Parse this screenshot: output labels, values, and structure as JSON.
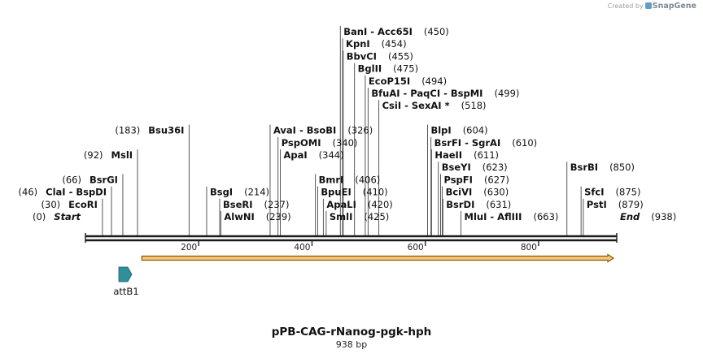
{
  "credit": {
    "prefix": "Created by",
    "brand": "SnapGene"
  },
  "map": {
    "name": "pPB-CAG-rNanog-pgk-hph",
    "length_label": "938 bp",
    "total_bp": 938,
    "colors": {
      "backbone": "#1a1a1a",
      "orf_fill": "#f6c57a",
      "orf_edge": "#8a5a00",
      "feature": "#2f8f9b"
    },
    "ticks": [
      {
        "bp": 200,
        "label": "200"
      },
      {
        "bp": 400,
        "label": "400"
      },
      {
        "bp": 600,
        "label": "600"
      },
      {
        "bp": 800,
        "label": "800"
      }
    ],
    "orf": {
      "start_bp": 91,
      "end_bp": 938
    },
    "feature": {
      "name": "attB1",
      "start_bp": 59,
      "end_bp": 83
    }
  },
  "sites": [
    {
      "id": "start",
      "text": "Start",
      "pos": "(0)",
      "bp": 0,
      "row": 0,
      "side": "right",
      "italic": true
    },
    {
      "id": "ecori",
      "text": "EcoRI",
      "pos": "(30)",
      "bp": 30,
      "row": 1,
      "side": "right"
    },
    {
      "id": "clai",
      "text": "ClaI  - BspDI",
      "pos": "(46)",
      "bp": 46,
      "row": 2,
      "side": "right"
    },
    {
      "id": "bsrgi",
      "text": "BsrGI",
      "pos": "(66)",
      "bp": 66,
      "row": 3,
      "side": "right"
    },
    {
      "id": "msli",
      "text": "MslI",
      "pos": "(92)",
      "bp": 92,
      "row": 5,
      "side": "right"
    },
    {
      "id": "bsu36i",
      "text": "Bsu36I",
      "pos": "(183)",
      "bp": 183,
      "row": 7,
      "side": "right"
    },
    {
      "id": "bsgi",
      "text": "BsgI",
      "pos": "(214)",
      "bp": 214,
      "row": 2,
      "side": "left"
    },
    {
      "id": "bseri",
      "text": "BseRI",
      "pos": "(237)",
      "bp": 237,
      "row": 1,
      "side": "left"
    },
    {
      "id": "alwni",
      "text": "AlwNI",
      "pos": "(239)",
      "bp": 239,
      "row": 0,
      "side": "left"
    },
    {
      "id": "bmri",
      "text": "BmrI",
      "pos": "(406)",
      "bp": 406,
      "row": 3,
      "side": "left"
    },
    {
      "id": "bpuei",
      "text": "BpuEI",
      "pos": "(410)",
      "bp": 410,
      "row": 2,
      "side": "left"
    },
    {
      "id": "apali",
      "text": "ApaLI",
      "pos": "(420)",
      "bp": 420,
      "row": 1,
      "side": "left"
    },
    {
      "id": "smli",
      "text": "SmlI",
      "pos": "(425)",
      "bp": 425,
      "row": 0,
      "side": "left"
    },
    {
      "id": "apai",
      "text": "ApaI",
      "pos": "(344)",
      "bp": 344,
      "row": 5,
      "side": "left"
    },
    {
      "id": "psphomi",
      "text": "PspOMI",
      "pos": "(340)",
      "bp": 340,
      "row": 6,
      "side": "left"
    },
    {
      "id": "avai",
      "text": "AvaI  - BsoBI",
      "pos": "(326)",
      "bp": 326,
      "row": 7,
      "side": "left"
    },
    {
      "id": "csii",
      "text": "CsiI  - SexAI *",
      "pos": "(518)",
      "bp": 518,
      "row": 9,
      "side": "left"
    },
    {
      "id": "bfuai",
      "text": "BfuAI  - PaqCI  - BspMI",
      "pos": "(499)",
      "bp": 499,
      "row": 10,
      "side": "left"
    },
    {
      "id": "ecop15i",
      "text": "EcoP15I",
      "pos": "(494)",
      "bp": 494,
      "row": 11,
      "side": "left"
    },
    {
      "id": "bglii",
      "text": "BglII",
      "pos": "(475)",
      "bp": 475,
      "row": 12,
      "side": "left"
    },
    {
      "id": "bbvci",
      "text": "BbvCI",
      "pos": "(455)",
      "bp": 455,
      "row": 13,
      "side": "left"
    },
    {
      "id": "kpni",
      "text": "KpnI",
      "pos": "(454)",
      "bp": 454,
      "row": 14,
      "side": "left"
    },
    {
      "id": "bani",
      "text": "BanI  - Acc65I",
      "pos": "(450)",
      "bp": 450,
      "row": 15,
      "side": "left"
    },
    {
      "id": "mlui",
      "text": "MluI  - AflIII",
      "pos": "(663)",
      "bp": 663,
      "row": 0,
      "side": "left"
    },
    {
      "id": "bsrdi",
      "text": "BsrDI",
      "pos": "(631)",
      "bp": 631,
      "row": 1,
      "side": "left"
    },
    {
      "id": "bcivi",
      "text": "BciVI",
      "pos": "(630)",
      "bp": 630,
      "row": 2,
      "side": "left"
    },
    {
      "id": "pspfi",
      "text": "PspFI",
      "pos": "(627)",
      "bp": 627,
      "row": 3,
      "side": "left"
    },
    {
      "id": "bseyi",
      "text": "BseYI",
      "pos": "(623)",
      "bp": 623,
      "row": 4,
      "side": "left"
    },
    {
      "id": "haeii",
      "text": "HaeII",
      "pos": "(611)",
      "bp": 611,
      "row": 5,
      "side": "left"
    },
    {
      "id": "bsrfi",
      "text": "BsrFI  - SgrAI",
      "pos": "(610)",
      "bp": 610,
      "row": 6,
      "side": "left"
    },
    {
      "id": "blpi",
      "text": "BlpI",
      "pos": "(604)",
      "bp": 604,
      "row": 7,
      "side": "left"
    },
    {
      "id": "psti",
      "text": "PstI",
      "pos": "(879)",
      "bp": 879,
      "row": 1,
      "side": "left"
    },
    {
      "id": "sfci",
      "text": "SfcI",
      "pos": "(875)",
      "bp": 875,
      "row": 2,
      "side": "left"
    },
    {
      "id": "bsrbi",
      "text": "BsrBI",
      "pos": "(850)",
      "bp": 850,
      "row": 4,
      "side": "left"
    },
    {
      "id": "end",
      "text": "End",
      "pos": "(938)",
      "bp": 938,
      "row": 0,
      "side": "left",
      "italic": true
    }
  ]
}
